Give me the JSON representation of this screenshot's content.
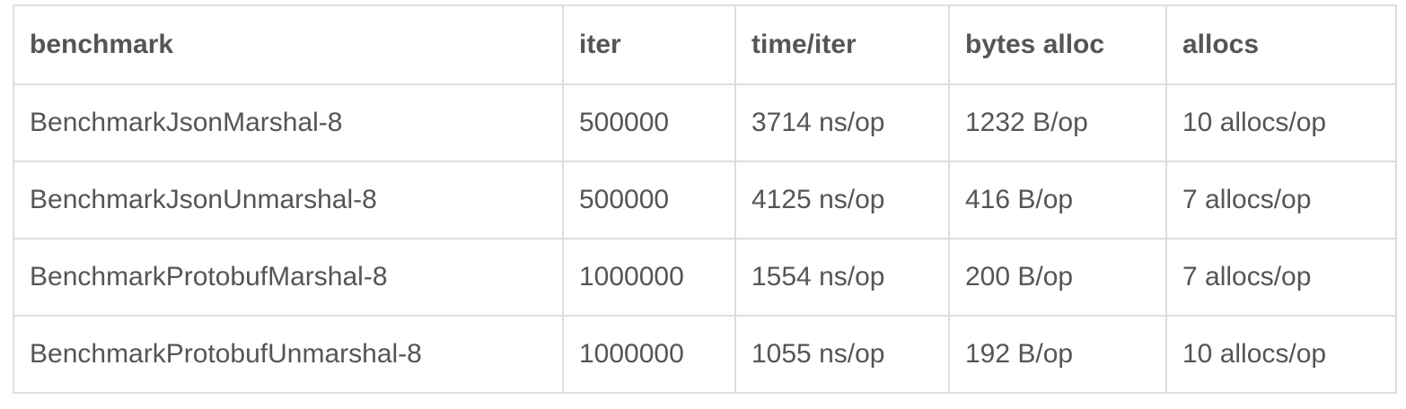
{
  "table": {
    "headers": [
      "benchmark",
      "iter",
      "time/iter",
      "bytes alloc",
      "allocs"
    ],
    "rows": [
      [
        "BenchmarkJsonMarshal-8",
        "500000",
        "3714 ns/op",
        "1232 B/op",
        "10 allocs/op"
      ],
      [
        "BenchmarkJsonUnmarshal-8",
        "500000",
        "4125 ns/op",
        "416 B/op",
        "7 allocs/op"
      ],
      [
        "BenchmarkProtobufMarshal-8",
        "1000000",
        "1554 ns/op",
        "200 B/op",
        "7 allocs/op"
      ],
      [
        "BenchmarkProtobufUnmarshal-8",
        "1000000",
        "1055 ns/op",
        "192 B/op",
        "10 allocs/op"
      ]
    ]
  },
  "colors": {
    "text": "#555555",
    "border": "#dddddd",
    "background": "#ffffff"
  }
}
